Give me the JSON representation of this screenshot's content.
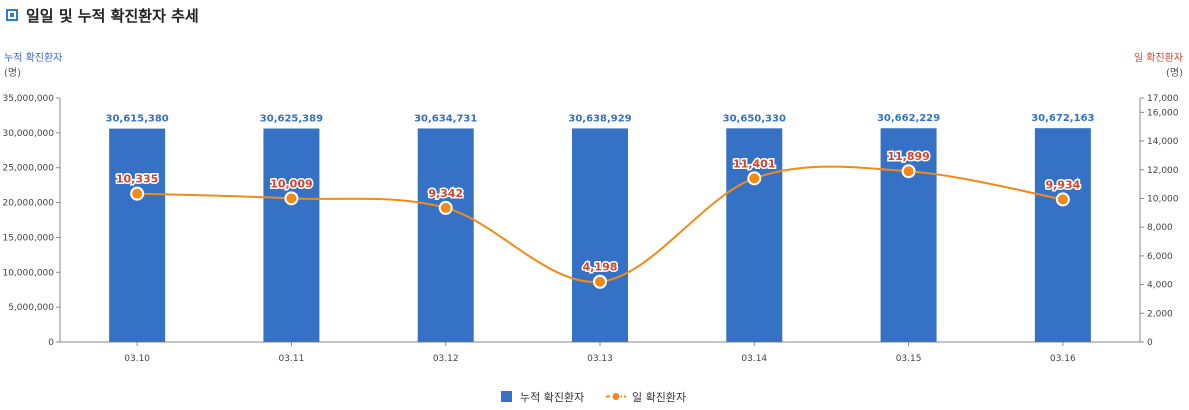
{
  "page": {
    "title": "일일 및 누적 확진환자 추세"
  },
  "colors": {
    "bar": "#3572c6",
    "line": "#f28a17",
    "right_label": "#d2452f",
    "left_label": "#3a66c4"
  },
  "chart_data": {
    "type": "bar+line",
    "categories": [
      "03.10",
      "03.11",
      "03.12",
      "03.13",
      "03.14",
      "03.15",
      "03.16"
    ],
    "series": [
      {
        "name": "누적 확진환자",
        "type": "bar",
        "axis": "left",
        "values": [
          30615380,
          30625389,
          30634731,
          30638929,
          30650330,
          30662229,
          30672163
        ],
        "labels": [
          "30,615,380",
          "30,625,389",
          "30,634,731",
          "30,638,929",
          "30,650,330",
          "30,662,229",
          "30,672,163"
        ]
      },
      {
        "name": "일 확진환자",
        "type": "line",
        "axis": "right",
        "values": [
          10335,
          10009,
          9342,
          4198,
          11401,
          11899,
          9934
        ],
        "labels": [
          "10,335",
          "10,009",
          "9,342",
          "4,198",
          "11,401",
          "11,899",
          "9,934"
        ]
      }
    ],
    "y_left": {
      "label": "누적 확진환자",
      "unit": "(명)",
      "range": [
        0,
        35000000
      ],
      "ticks": [
        0,
        5000000,
        10000000,
        15000000,
        20000000,
        25000000,
        30000000,
        35000000
      ],
      "tick_labels": [
        "0",
        "5,000,000",
        "10,000,000",
        "15,000,000",
        "20,000,000",
        "25,000,000",
        "30,000,000",
        "35,000,000"
      ]
    },
    "y_right": {
      "label": "일 확진환자",
      "unit": "(명)",
      "range": [
        0,
        17000
      ],
      "ticks": [
        0,
        2000,
        4000,
        6000,
        8000,
        10000,
        12000,
        14000,
        16000,
        17000
      ],
      "tick_labels": [
        "0",
        "2,000",
        "4,000",
        "6,000",
        "8,000",
        "10,000",
        "12,000",
        "14,000",
        "16,000",
        "17,000"
      ]
    },
    "legend": {
      "position": "bottom-center",
      "items": [
        "누적 확진환자",
        "일 확진환자"
      ]
    },
    "grid": false
  }
}
